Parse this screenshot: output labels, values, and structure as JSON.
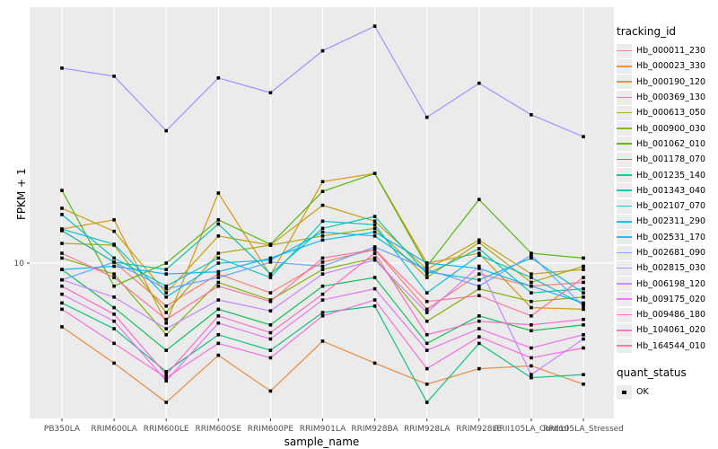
{
  "figure": {
    "panel_bg": "#EBEBEB",
    "grid_color": "#FFFFFF",
    "tick_color": "#333333",
    "tick_label_color": "#4D4D4D",
    "point_color": "#000000"
  },
  "legend": {
    "tracking_title": "tracking_id",
    "quant_title": "quant_status",
    "quant_ok_label": "OK"
  },
  "chart_data": {
    "type": "line",
    "title": "",
    "xlabel": "sample_name",
    "ylabel": "FPKM + 1",
    "y_scale": "log10",
    "y_ticks": [
      10
    ],
    "y_tick_labels": [
      "10"
    ],
    "ylim": [
      2.2,
      120
    ],
    "grid": true,
    "legend_position": "right",
    "marker": "black-square",
    "quant_status": {
      "label": "OK"
    },
    "categories": [
      "PB350LA",
      "RRIM600LA",
      "RRIM600LE",
      "RRIM600SE",
      "RRIM600PE",
      "RRIM901LA",
      "RRIM928BA",
      "RRIM928LA",
      "RRIM928LE",
      "RRII105LA_Control",
      "RRII105LA_Stressed"
    ],
    "series": [
      {
        "name": "Hb_000011_230",
        "color": "#F8766D",
        "values": [
          13.7,
          10.1,
          6.6,
          9.0,
          7.5,
          10.1,
          11.4,
          6.4,
          9.0,
          8.0,
          8.3
        ]
      },
      {
        "name": "Hb_000023_330",
        "color": "#EA8331",
        "values": [
          5.4,
          3.8,
          2.6,
          4.1,
          2.9,
          4.7,
          3.8,
          3.1,
          3.6,
          3.7,
          3.1
        ]
      },
      {
        "name": "Hb_000190_120",
        "color": "#D89000",
        "values": [
          13.9,
          15.2,
          5.6,
          19.7,
          8.9,
          22.0,
          23.8,
          10.0,
          11.0,
          6.5,
          6.4
        ]
      },
      {
        "name": "Hb_000369_130",
        "color": "#C49A00",
        "values": [
          17.0,
          13.6,
          7.5,
          13.0,
          11.9,
          17.5,
          15.0,
          9.4,
          12.5,
          9.0,
          9.4
        ]
      },
      {
        "name": "Hb_000613_050",
        "color": "#A3A500",
        "values": [
          12.1,
          11.9,
          6.2,
          11.0,
          11.9,
          13.0,
          14.0,
          8.7,
          12.2,
          8.3,
          9.7
        ]
      },
      {
        "name": "Hb_000900_030",
        "color": "#7CAE00",
        "values": [
          10.5,
          9.0,
          5.0,
          8.3,
          7.0,
          9.4,
          10.5,
          5.7,
          7.8,
          6.9,
          7.2
        ]
      },
      {
        "name": "Hb_001062_010",
        "color": "#49B500",
        "values": [
          20.2,
          8.0,
          10.0,
          15.2,
          12.0,
          20.0,
          23.8,
          9.7,
          18.5,
          11.0,
          10.5
        ]
      },
      {
        "name": "Hb_001178_070",
        "color": "#00BB4E",
        "values": [
          9.4,
          6.5,
          4.3,
          6.4,
          5.5,
          8.0,
          8.7,
          4.6,
          6.0,
          5.2,
          5.5
        ]
      },
      {
        "name": "Hb_001235_140",
        "color": "#00BF7D",
        "values": [
          6.8,
          5.3,
          3.5,
          5.0,
          4.3,
          6.2,
          6.6,
          2.6,
          4.6,
          3.3,
          3.4
        ]
      },
      {
        "name": "Hb_001343_040",
        "color": "#00C1A3",
        "values": [
          13.7,
          10.1,
          9.4,
          14.6,
          9.0,
          14.0,
          15.7,
          9.0,
          11.5,
          7.5,
          7.8
        ]
      },
      {
        "name": "Hb_002107_070",
        "color": "#00BFC4",
        "values": [
          16.0,
          10.5,
          8.0,
          10.5,
          8.7,
          15.0,
          14.5,
          7.5,
          10.8,
          8.7,
          6.7
        ]
      },
      {
        "name": "Hb_002311_290",
        "color": "#00BADE",
        "values": [
          13.9,
          12.0,
          7.2,
          10.0,
          10.3,
          13.5,
          13.0,
          9.2,
          8.5,
          10.5,
          7.5
        ]
      },
      {
        "name": "Hb_002531_170",
        "color": "#00B0F6",
        "values": [
          9.4,
          9.7,
          9.0,
          9.2,
          10.5,
          12.5,
          13.5,
          10.0,
          9.5,
          8.0,
          6.8
        ]
      },
      {
        "name": "Hb_002681_090",
        "color": "#619CFF",
        "values": [
          8.5,
          10.1,
          7.8,
          8.7,
          10.1,
          9.7,
          11.7,
          9.4,
          8.0,
          10.8,
          6.6
        ]
      },
      {
        "name": "Hb_002815_030",
        "color": "#9590FF",
        "values": [
          66,
          61,
          36,
          60,
          52,
          78,
          99,
          41,
          57,
          42,
          34
        ]
      },
      {
        "name": "Hb_006198_120",
        "color": "#C77CFF",
        "values": [
          8.5,
          7.2,
          5.3,
          7.0,
          6.3,
          9.0,
          10.3,
          6.2,
          9.7,
          3.4,
          4.8
        ]
      },
      {
        "name": "Hb_009175_020",
        "color": "#E76BF3",
        "values": [
          7.4,
          5.7,
          3.2,
          5.6,
          4.8,
          7.0,
          7.8,
          4.3,
          5.3,
          4.4,
          5.0
        ]
      },
      {
        "name": "Hb_009486_180",
        "color": "#FA62DB",
        "values": [
          6.4,
          4.6,
          3.3,
          4.6,
          4.0,
          6.0,
          7.0,
          3.6,
          4.9,
          4.0,
          4.4
        ]
      },
      {
        "name": "Hb_104061_020",
        "color": "#FF61C3",
        "values": [
          8.0,
          6.1,
          3.4,
          6.0,
          5.1,
          7.4,
          11.0,
          5.0,
          5.7,
          5.5,
          5.8
        ]
      },
      {
        "name": "Hb_164544_010",
        "color": "#FF6A98",
        "values": [
          11.0,
          8.7,
          5.8,
          8.0,
          6.9,
          10.5,
          11.4,
          6.9,
          7.3,
          6.0,
          8.7
        ]
      }
    ]
  }
}
